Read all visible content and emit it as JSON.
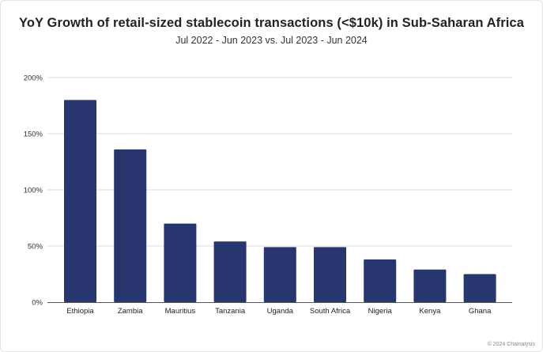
{
  "chart_data": {
    "type": "bar",
    "title": "YoY Growth of retail-sized stablecoin transactions (<$10k) in Sub-Saharan Africa",
    "subtitle": "Jul 2022 - Jun 2023 vs. Jul 2023 - Jun 2024",
    "xlabel": "",
    "ylabel": "",
    "categories": [
      "Ethiopia",
      "Zambia",
      "Mauritius",
      "Tanzania",
      "Uganda",
      "South Africa",
      "Nigeria",
      "Kenya",
      "Ghana"
    ],
    "values": [
      180,
      136,
      70,
      54,
      49,
      49,
      38,
      29,
      25
    ],
    "ylim": [
      0,
      200
    ],
    "yticks": [
      0,
      50,
      100,
      150,
      200
    ],
    "ytick_labels": [
      "0%",
      "50%",
      "100%",
      "150%",
      "200%"
    ],
    "grid": true,
    "colors": {
      "bar": "#283670",
      "grid": "#d9d9d9",
      "axis": "#555555"
    }
  },
  "footer": {
    "credit": "© 2024 Chainalysis"
  }
}
